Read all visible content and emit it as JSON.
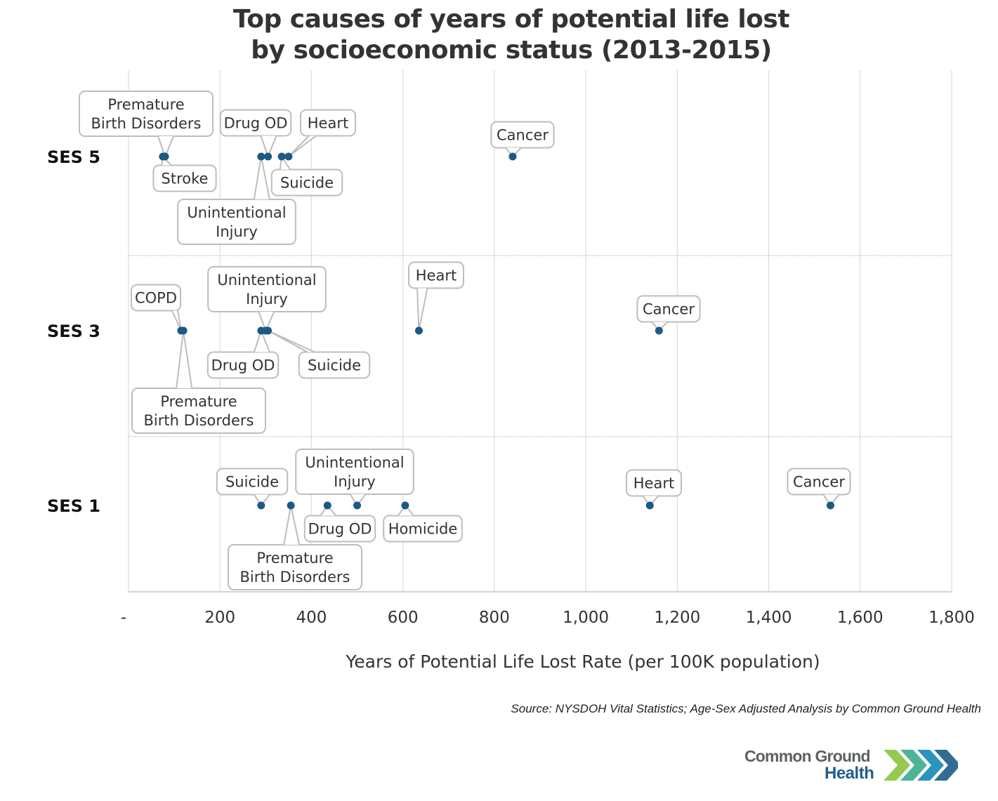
{
  "chart_data": {
    "type": "scatter",
    "title": "Top causes of years of potential life lost by socioeconomic status (2013-2015)",
    "title_lines": [
      "Top causes of years of potential life lost",
      "by socioeconomic status (2013-2015)"
    ],
    "xlabel": "Years of Potential Life Lost Rate (per 100K population)",
    "ylabel": "",
    "xlim": [
      0,
      1800
    ],
    "x_ticks": [
      0,
      200,
      400,
      600,
      800,
      1000,
      1200,
      1400,
      1600,
      1800
    ],
    "x_tick_labels": [
      "-",
      "200",
      "400",
      "600",
      "800",
      "1,000",
      "1,200",
      "1,400",
      "1,600",
      "1,800"
    ],
    "categories": [
      "SES 5",
      "SES 3",
      "SES 1"
    ],
    "grid": true,
    "marker_color": "#1b5a82",
    "series": [
      {
        "name": "SES 5",
        "points": [
          {
            "label": "Premature Birth Disorders",
            "label_lines": [
              "Premature",
              "Birth Disorders"
            ],
            "value": 80,
            "callout": "top"
          },
          {
            "label": "Stroke",
            "label_lines": [
              "Stroke"
            ],
            "value": 75,
            "callout": "bottom"
          },
          {
            "label": "Drug OD",
            "label_lines": [
              "Drug OD"
            ],
            "value": 305,
            "callout": "top"
          },
          {
            "label": "Unintentional Injury",
            "label_lines": [
              "Unintentional",
              "Injury"
            ],
            "value": 290,
            "callout": "bottom"
          },
          {
            "label": "Heart",
            "label_lines": [
              "Heart"
            ],
            "value": 350,
            "callout": "top"
          },
          {
            "label": "Suicide",
            "label_lines": [
              "Suicide"
            ],
            "value": 335,
            "callout": "bottom"
          },
          {
            "label": "Cancer",
            "label_lines": [
              "Cancer"
            ],
            "value": 840,
            "callout": "top"
          }
        ]
      },
      {
        "name": "SES 3",
        "points": [
          {
            "label": "COPD",
            "label_lines": [
              "COPD"
            ],
            "value": 115,
            "callout": "top"
          },
          {
            "label": "Premature Birth Disorders",
            "label_lines": [
              "Premature",
              "Birth Disorders"
            ],
            "value": 120,
            "callout": "bottom"
          },
          {
            "label": "Unintentional Injury",
            "label_lines": [
              "Unintentional",
              "Injury"
            ],
            "value": 300,
            "callout": "top"
          },
          {
            "label": "Drug OD",
            "label_lines": [
              "Drug OD"
            ],
            "value": 290,
            "callout": "bottom"
          },
          {
            "label": "Suicide",
            "label_lines": [
              "Suicide"
            ],
            "value": 305,
            "callout": "bottom"
          },
          {
            "label": "Heart",
            "label_lines": [
              "Heart"
            ],
            "value": 635,
            "callout": "top"
          },
          {
            "label": "Cancer",
            "label_lines": [
              "Cancer"
            ],
            "value": 1160,
            "callout": "top"
          }
        ]
      },
      {
        "name": "SES 1",
        "points": [
          {
            "label": "Suicide",
            "label_lines": [
              "Suicide"
            ],
            "value": 290,
            "callout": "top"
          },
          {
            "label": "Premature Birth Disorders",
            "label_lines": [
              "Premature",
              "Birth Disorders"
            ],
            "value": 355,
            "callout": "bottom"
          },
          {
            "label": "Drug OD",
            "label_lines": [
              "Drug OD"
            ],
            "value": 435,
            "callout": "bottom"
          },
          {
            "label": "Unintentional Injury",
            "label_lines": [
              "Unintentional",
              "Injury"
            ],
            "value": 500,
            "callout": "top"
          },
          {
            "label": "Homicide",
            "label_lines": [
              "Homicide"
            ],
            "value": 605,
            "callout": "bottom"
          },
          {
            "label": "Heart",
            "label_lines": [
              "Heart"
            ],
            "value": 1140,
            "callout": "top"
          },
          {
            "label": "Cancer",
            "label_lines": [
              "Cancer"
            ],
            "value": 1535,
            "callout": "top"
          }
        ]
      }
    ]
  },
  "source": "Source: NYSDOH Vital Statistics; Age-Sex Adjusted Analysis by Common Ground Health",
  "logo": {
    "line1": "Common Ground",
    "line2": "Health",
    "chevron_colors": [
      "#8dc63f",
      "#3fae8f",
      "#1a8bb5",
      "#1f5f8c"
    ]
  }
}
